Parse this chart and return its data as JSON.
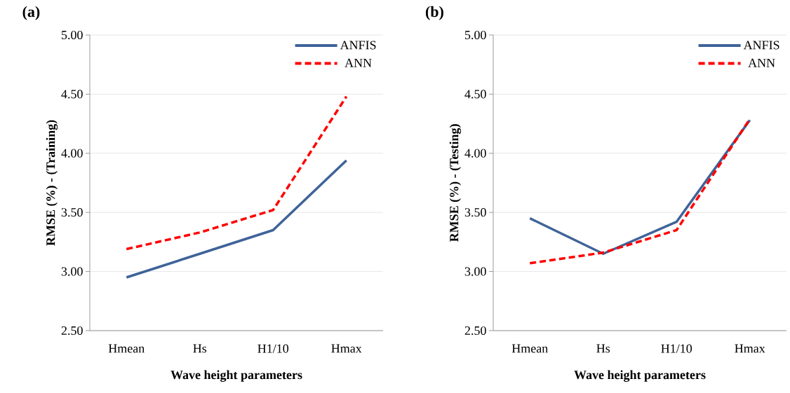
{
  "chart_data": [
    {
      "type": "line",
      "title": "(a)",
      "xlabel": "Wave height parameters",
      "ylabel": "RMSE (%) - (Training)",
      "categories": [
        "Hmean",
        "Hs",
        "H1/10",
        "Hmax"
      ],
      "series": [
        {
          "name": "ANFIS",
          "color": "#3f6399",
          "line_style": "solid",
          "values": [
            2.95,
            3.15,
            3.35,
            3.94
          ]
        },
        {
          "name": "ANN",
          "color": "#ff0000",
          "line_style": "dashed",
          "values": [
            3.19,
            3.33,
            3.52,
            4.48
          ]
        }
      ],
      "ylim": [
        2.5,
        5.0
      ],
      "yticks": [
        {
          "value": 2.5,
          "label": "2.50"
        },
        {
          "value": 3.0,
          "label": "3.00"
        },
        {
          "value": 3.5,
          "label": "3.50"
        },
        {
          "value": 4.0,
          "label": "4.00"
        },
        {
          "value": 4.5,
          "label": "4.50"
        },
        {
          "value": 5.0,
          "label": "5.00"
        }
      ],
      "grid": "y",
      "legend": "top right",
      "marker": "none"
    },
    {
      "type": "line",
      "title": "(b)",
      "xlabel": "Wave height parameters",
      "ylabel": "RMSE (%) - (Testing)",
      "categories": [
        "Hmean",
        "Hs",
        "H1/10",
        "Hmax"
      ],
      "series": [
        {
          "name": "ANFIS",
          "color": "#3f6399",
          "line_style": "solid",
          "values": [
            3.45,
            3.15,
            3.42,
            4.28
          ]
        },
        {
          "name": "ANN",
          "color": "#ff0000",
          "line_style": "dashed",
          "values": [
            3.07,
            3.16,
            3.35,
            4.29
          ]
        }
      ],
      "ylim": [
        2.5,
        5.0
      ],
      "yticks": [
        {
          "value": 2.5,
          "label": "2.50"
        },
        {
          "value": 3.0,
          "label": "3.00"
        },
        {
          "value": 3.5,
          "label": "3.50"
        },
        {
          "value": 4.0,
          "label": "4.00"
        },
        {
          "value": 4.5,
          "label": "4.50"
        },
        {
          "value": 5.0,
          "label": "5.00"
        }
      ],
      "grid": "y",
      "legend": "top right",
      "marker": "none"
    }
  ]
}
